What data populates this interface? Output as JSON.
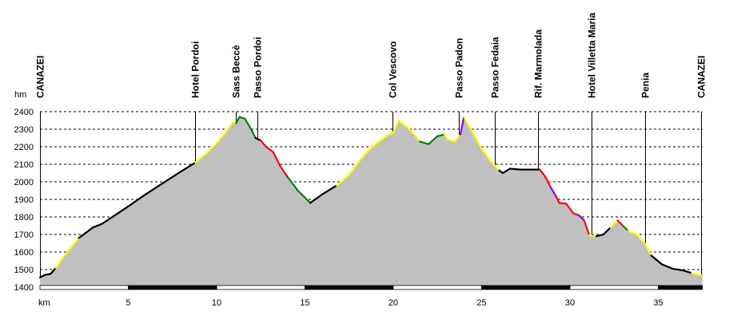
{
  "chart_data": {
    "type": "area",
    "title": "",
    "xlabel": "km",
    "ylabel": "hm",
    "xlim": [
      0,
      37.5
    ],
    "ylim": [
      1400,
      2400
    ],
    "grid": true,
    "fill_color": "#c0c0c0",
    "x_ticks": [
      "5",
      "10",
      "15",
      "20",
      "25",
      "30",
      "35"
    ],
    "y_ticks": [
      "2400",
      "2300",
      "2200",
      "2100",
      "2000",
      "1900",
      "1800",
      "1700",
      "1600",
      "1500",
      "1400"
    ],
    "segment_colors": {
      "k": "#000000",
      "y": "#ffff00",
      "g": "#008000",
      "r": "#ff0000",
      "p": "#8000ff"
    },
    "profile": [
      [
        0,
        1455,
        "k"
      ],
      [
        0.3,
        1470,
        "k"
      ],
      [
        0.6,
        1475,
        "k"
      ],
      [
        0.9,
        1510,
        "y"
      ],
      [
        1.3,
        1570,
        "y"
      ],
      [
        1.7,
        1620,
        "y"
      ],
      [
        2.2,
        1680,
        "k"
      ],
      [
        3.0,
        1740,
        "k"
      ],
      [
        3.5,
        1760,
        "k"
      ],
      [
        5,
        1860,
        "k"
      ],
      [
        6,
        1930,
        "k"
      ],
      [
        7,
        1995,
        "k"
      ],
      [
        8,
        2060,
        "k"
      ],
      [
        8.8,
        2110,
        "y"
      ],
      [
        9.5,
        2170,
        "y"
      ],
      [
        10.0,
        2220,
        "y"
      ],
      [
        10.5,
        2280,
        "y"
      ],
      [
        10.9,
        2340,
        "y"
      ],
      [
        11.1,
        2335,
        "g"
      ],
      [
        11.3,
        2370,
        "g"
      ],
      [
        11.6,
        2360,
        "g"
      ],
      [
        11.9,
        2310,
        "g"
      ],
      [
        12.2,
        2250,
        "k"
      ],
      [
        12.5,
        2235,
        "r"
      ],
      [
        12.8,
        2200,
        "r"
      ],
      [
        13.2,
        2170,
        "r"
      ],
      [
        13.6,
        2090,
        "r"
      ],
      [
        14.0,
        2030,
        "g"
      ],
      [
        14.6,
        1950,
        "g"
      ],
      [
        15.3,
        1880,
        "k"
      ],
      [
        16.0,
        1930,
        "k"
      ],
      [
        16.8,
        1980,
        "y"
      ],
      [
        17.5,
        2040,
        "y"
      ],
      [
        18.0,
        2110,
        "y"
      ],
      [
        18.6,
        2180,
        "y"
      ],
      [
        19.2,
        2230,
        "y"
      ],
      [
        19.6,
        2260,
        "y"
      ],
      [
        20.0,
        2280,
        "y"
      ],
      [
        20.3,
        2350,
        "y"
      ],
      [
        20.8,
        2310,
        "y"
      ],
      [
        21.2,
        2270,
        "y"
      ],
      [
        21.5,
        2230,
        "g"
      ],
      [
        22.0,
        2215,
        "g"
      ],
      [
        22.5,
        2260,
        "g"
      ],
      [
        22.9,
        2270,
        "y"
      ],
      [
        23.1,
        2240,
        "y"
      ],
      [
        23.5,
        2230,
        "y"
      ],
      [
        23.8,
        2270,
        "p"
      ],
      [
        24.0,
        2370,
        "y"
      ],
      [
        24.5,
        2280,
        "y"
      ],
      [
        25.0,
        2190,
        "y"
      ],
      [
        25.5,
        2120,
        "y"
      ],
      [
        26.0,
        2065,
        "k"
      ],
      [
        26.2,
        2050,
        "k"
      ],
      [
        26.6,
        2075,
        "k"
      ],
      [
        27.2,
        2070,
        "k"
      ],
      [
        28.3,
        2070,
        "r"
      ],
      [
        28.6,
        2030,
        "r"
      ],
      [
        28.9,
        1970,
        "p"
      ],
      [
        29.2,
        1920,
        "r"
      ],
      [
        29.4,
        1880,
        "r"
      ],
      [
        29.8,
        1875,
        "r"
      ],
      [
        30.2,
        1820,
        "r"
      ],
      [
        30.5,
        1810,
        "p"
      ],
      [
        30.8,
        1780,
        "r"
      ],
      [
        31.1,
        1695,
        "y"
      ],
      [
        31.5,
        1690,
        "k"
      ],
      [
        31.9,
        1700,
        "k"
      ],
      [
        32.3,
        1740,
        "y"
      ],
      [
        32.7,
        1780,
        "r"
      ],
      [
        33.0,
        1750,
        "g"
      ],
      [
        33.3,
        1720,
        "y"
      ],
      [
        33.8,
        1700,
        "y"
      ],
      [
        34.3,
        1640,
        "y"
      ],
      [
        34.6,
        1580,
        "k"
      ],
      [
        35.2,
        1530,
        "k"
      ],
      [
        35.8,
        1505,
        "k"
      ],
      [
        36.4,
        1495,
        "k"
      ],
      [
        36.9,
        1480,
        "y"
      ],
      [
        37.5,
        1465,
        "y"
      ]
    ],
    "waypoints": [
      {
        "name": "CANAZEI",
        "km": 0
      },
      {
        "name": "Hotel Pordoi",
        "km": 8.8
      },
      {
        "name": "Sass Beccè",
        "km": 11.1
      },
      {
        "name": "Passo Pordoi",
        "km": 12.3
      },
      {
        "name": "Col Vescovo",
        "km": 19.95
      },
      {
        "name": "Passo Padon",
        "km": 23.7
      },
      {
        "name": "Passo Fedaia",
        "km": 25.75
      },
      {
        "name": "Rif. Marmolada",
        "km": 28.2
      },
      {
        "name": "Hotel Villetta Maria",
        "km": 31.2
      },
      {
        "name": "Penia",
        "km": 34.25
      },
      {
        "name": "CANAZEI",
        "km": 37.4
      }
    ]
  }
}
